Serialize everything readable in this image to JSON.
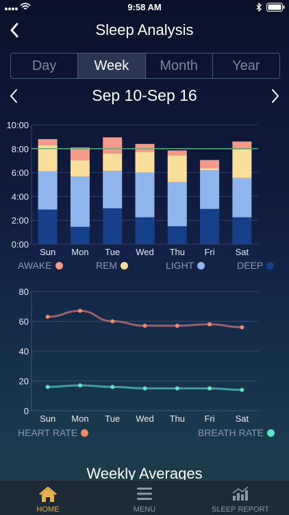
{
  "status": {
    "time": "9:58 AM"
  },
  "header": {
    "title": "Sleep Analysis"
  },
  "tabs": [
    {
      "label": "Day",
      "active": false
    },
    {
      "label": "Week",
      "active": true
    },
    {
      "label": "Month",
      "active": false
    },
    {
      "label": "Year",
      "active": false
    }
  ],
  "date_range": "Sep 10-Sep 16",
  "legend_sleep": {
    "awake": "AWAKE",
    "rem": "REM",
    "light": "LIGHT",
    "deep": "DEEP"
  },
  "legend_rates": {
    "heart": "HEART RATE",
    "breath": "BREATH RATE"
  },
  "colors": {
    "awake": "#f49a8a",
    "rem": "#f8dd9b",
    "light": "#8fb6ec",
    "deep": "#17408b",
    "heart": "#f08a6a",
    "breath": "#5fe3c4",
    "goal": "#58b070"
  },
  "chart_data": [
    {
      "type": "bar",
      "stacked": true,
      "categories": [
        "Sun",
        "Mon",
        "Tue",
        "Wed",
        "Thu",
        "Fri",
        "Sat"
      ],
      "yticks": [
        "0:00",
        "2:00",
        "4:00",
        "6:00",
        "8:00",
        "10:00"
      ],
      "ylim": [
        0,
        10
      ],
      "goal_line": 8,
      "series": [
        {
          "name": "DEEP",
          "values": [
            2.9,
            1.45,
            3.0,
            2.25,
            1.5,
            2.95,
            2.25
          ]
        },
        {
          "name": "LIGHT",
          "values": [
            3.2,
            4.2,
            3.15,
            3.75,
            3.7,
            3.25,
            3.3
          ]
        },
        {
          "name": "REM",
          "values": [
            2.2,
            1.4,
            1.45,
            1.75,
            2.25,
            0.15,
            2.4
          ]
        },
        {
          "name": "AWAKE",
          "values": [
            0.5,
            1.05,
            1.35,
            0.65,
            0.4,
            0.7,
            0.65
          ]
        }
      ]
    },
    {
      "type": "line",
      "categories": [
        "Sun",
        "Mon",
        "Tue",
        "Wed",
        "Thu",
        "Fri",
        "Sat"
      ],
      "yticks": [
        "0",
        "20",
        "40",
        "60",
        "80"
      ],
      "ylim": [
        0,
        80
      ],
      "series": [
        {
          "name": "HEART RATE",
          "values": [
            63,
            67,
            60,
            57,
            57,
            58,
            56
          ]
        },
        {
          "name": "BREATH RATE",
          "values": [
            16,
            17,
            16,
            15,
            15,
            15,
            14
          ]
        }
      ]
    }
  ],
  "section_title": "Weekly Averages",
  "bottom_tabs": [
    {
      "label": "HOME",
      "icon": "home-icon",
      "active": true
    },
    {
      "label": "MENU",
      "icon": "menu-icon",
      "active": false
    },
    {
      "label": "SLEEP REPORT",
      "icon": "report-icon",
      "active": false
    }
  ]
}
